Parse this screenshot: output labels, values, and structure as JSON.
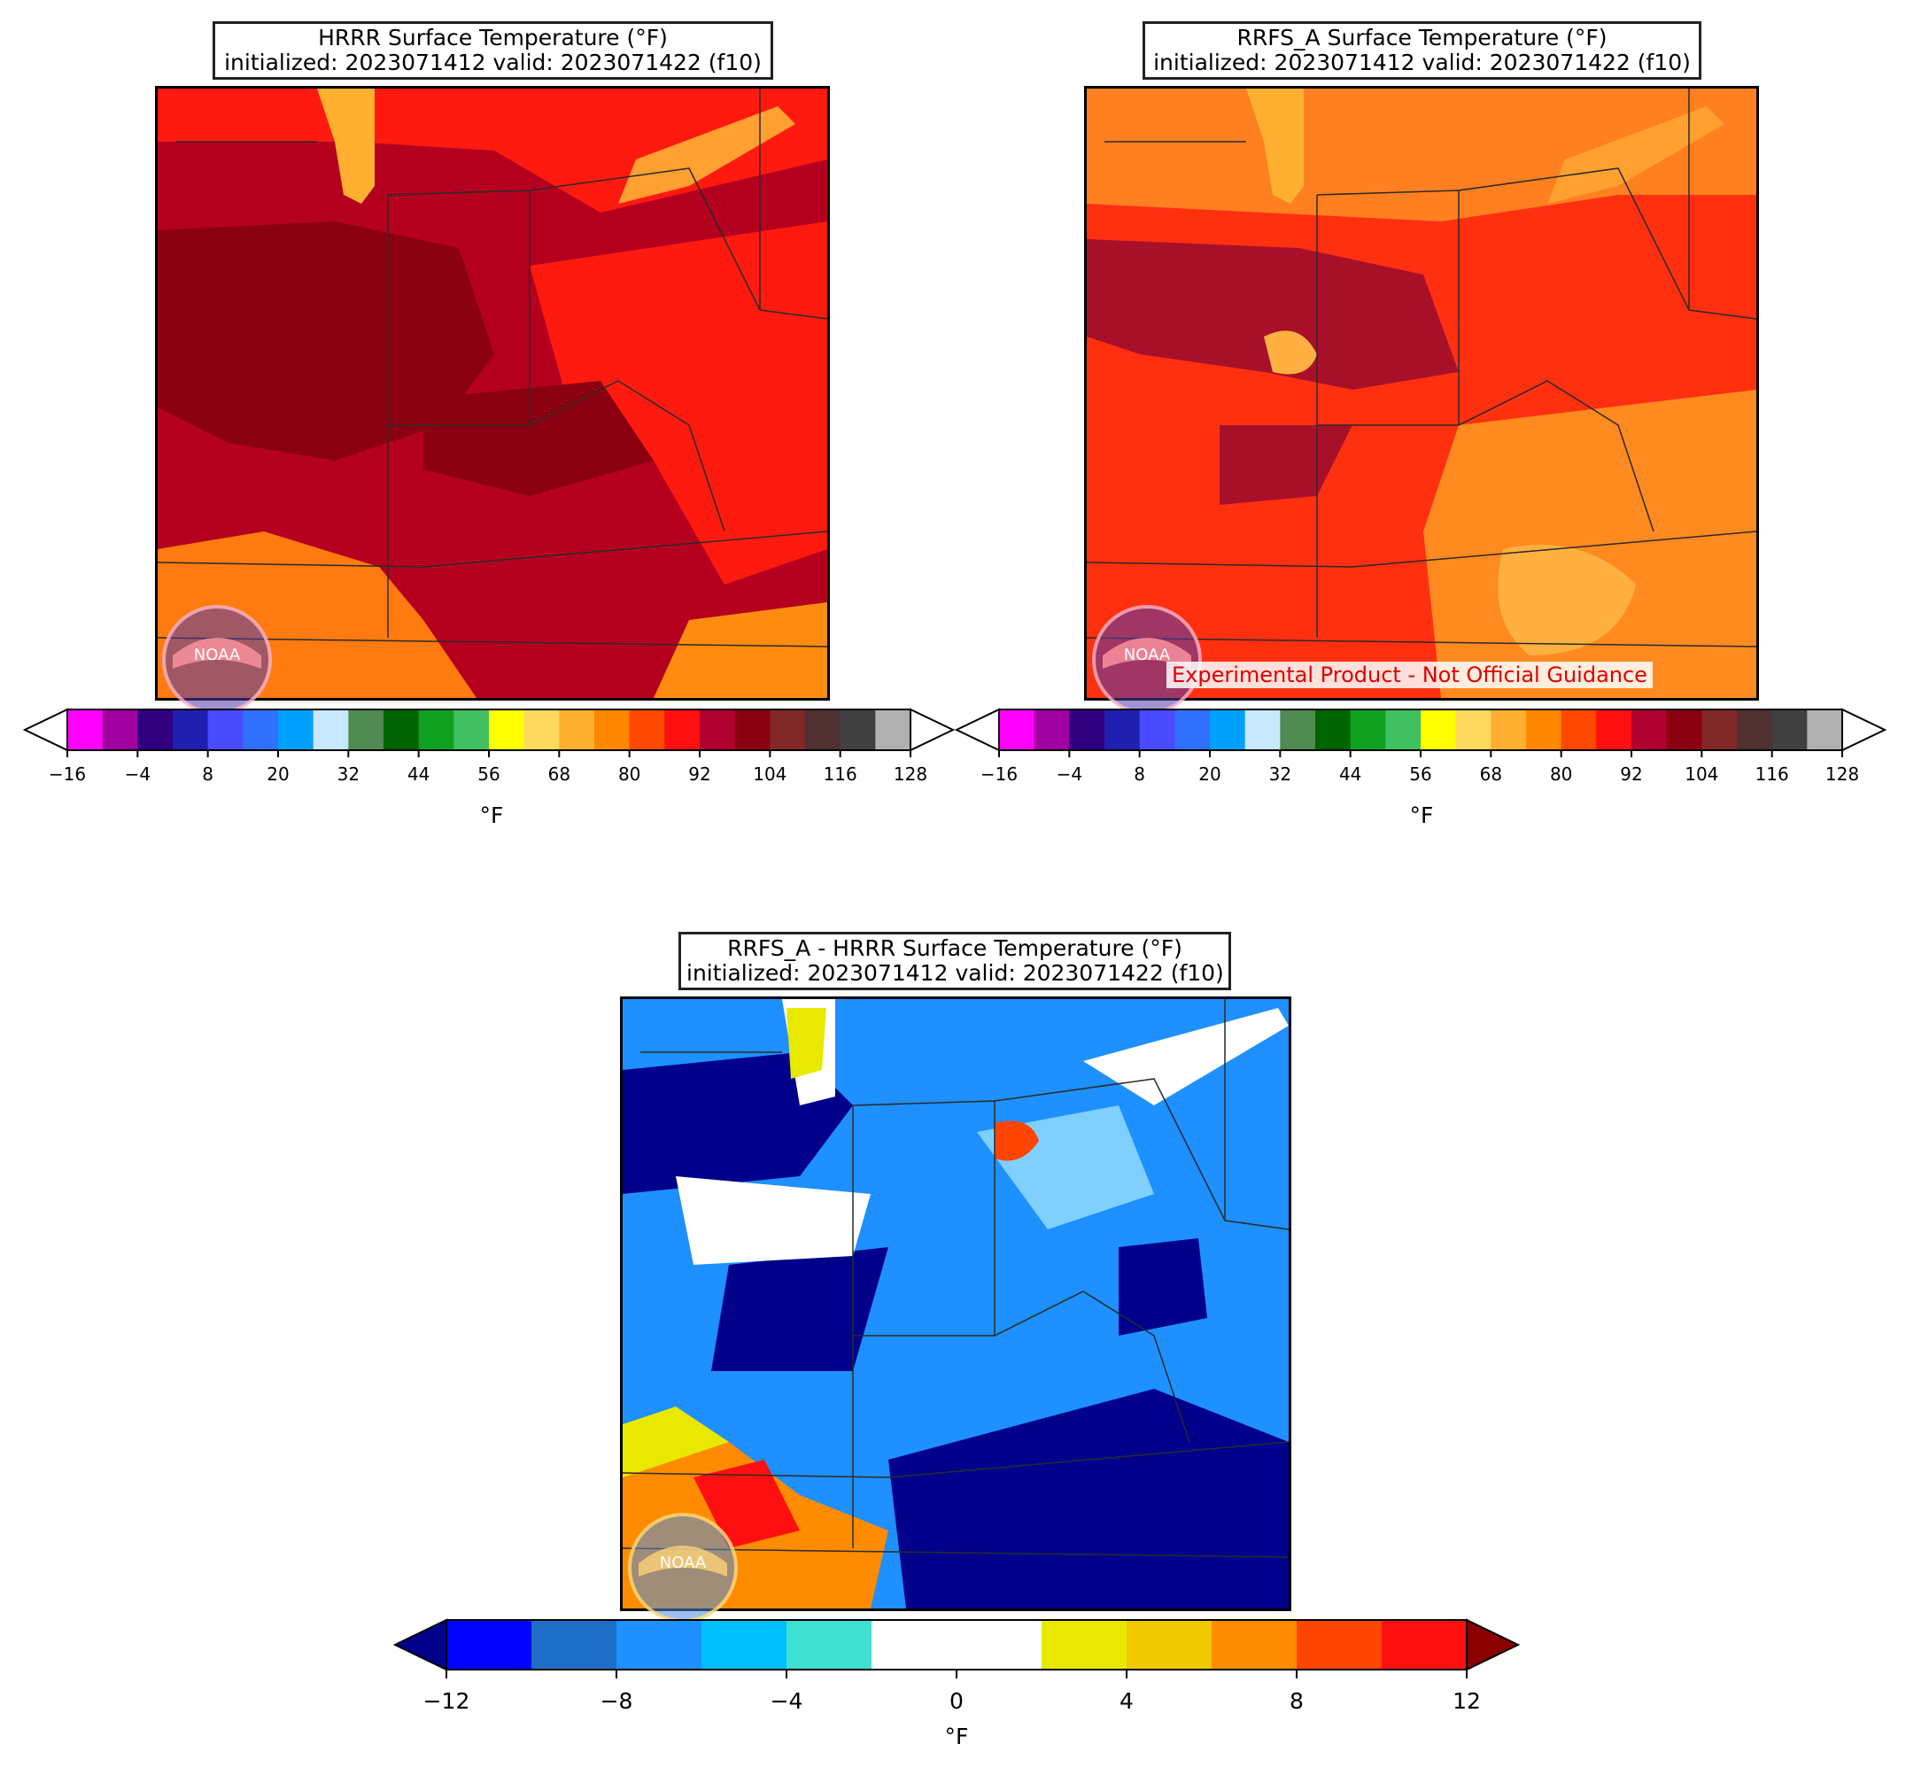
{
  "panels": {
    "hrrr": {
      "title_line1": "HRRR Surface Temperature (°F)",
      "title_line2": "initialized: 2023071412 valid: 2023071422 (f10)"
    },
    "rrfs": {
      "title_line1": "RRFS_A Surface Temperature (°F)",
      "title_line2": "initialized: 2023071412 valid: 2023071422 (f10)",
      "watermark": "Experimental Product - Not Official Guidance"
    },
    "diff": {
      "title_line1": "RRFS_A - HRRR Surface Temperature (°F)",
      "title_line2": "initialized: 2023071412 valid: 2023071422 (f10)"
    }
  },
  "temp_colorbar": {
    "unit": "°F",
    "ticks": [
      "−16",
      "−4",
      "8",
      "20",
      "32",
      "44",
      "56",
      "68",
      "80",
      "92",
      "104",
      "116",
      "128"
    ],
    "colors": [
      "#ff00ff",
      "#a000a0",
      "#2e0080",
      "#2020b0",
      "#4a4aff",
      "#3070ff",
      "#00a0ff",
      "#c8e8ff",
      "#4f8a50",
      "#006400",
      "#10a020",
      "#40c060",
      "#ffff00",
      "#ffd860",
      "#ffb030",
      "#ff8800",
      "#ff4800",
      "#ff1010",
      "#b00030",
      "#8a0010",
      "#802828",
      "#503030",
      "#404040",
      "#b0b0b0"
    ]
  },
  "diff_colorbar": {
    "unit": "°F",
    "ticks": [
      "−12",
      "−8",
      "−4",
      "0",
      "4",
      "8",
      "12"
    ],
    "colors": [
      "#0000ff",
      "#1e6ec8",
      "#1e90ff",
      "#00bfff",
      "#40e0d0",
      "#ffffff",
      "#ffffff",
      "#e8e800",
      "#f0c800",
      "#ff8c00",
      "#ff4500",
      "#ff1010"
    ],
    "under_color": "#00008b",
    "over_color": "#8b0000"
  },
  "logo_text": "NOAA"
}
